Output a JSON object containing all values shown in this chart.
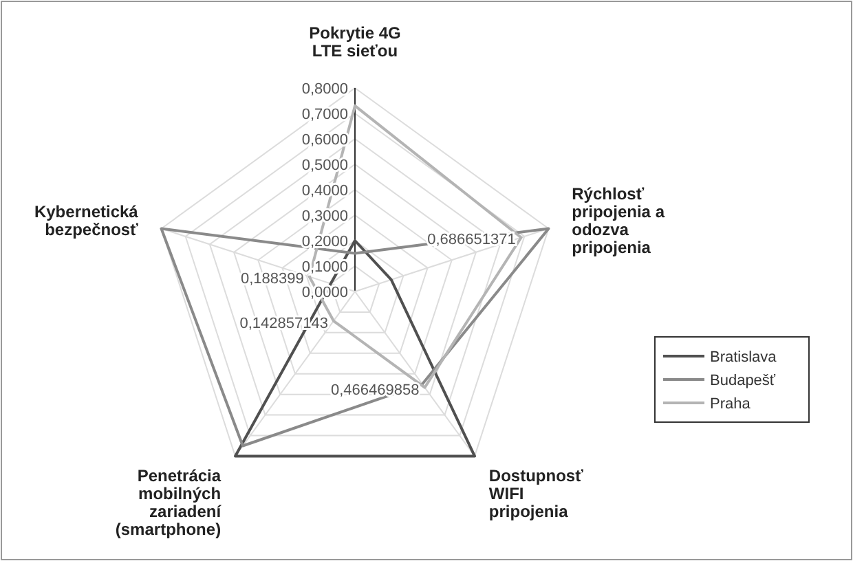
{
  "chart_data": {
    "type": "radar",
    "categories": [
      "Pokrytie 4G LTE sieťou",
      "Rýchlosť pripojenia a odozva pripojenia",
      "Dostupnosť WIFI pripojenia",
      "Penetrácia mobilných zariadení (smartphone)",
      "Kybernetická bezpečnosť"
    ],
    "series": [
      {
        "name": "Bratislava",
        "color": "#505050",
        "values": [
          0.2,
          0.15,
          0.8,
          0.8,
          0.1
        ]
      },
      {
        "name": "Budapešť",
        "color": "#8a8a8a",
        "values": [
          0.15,
          0.8,
          0.45,
          0.75,
          0.8
        ]
      },
      {
        "name": "Praha",
        "color": "#b4b4b4",
        "values": [
          0.73,
          0.686651371,
          0.466469858,
          0.142857143,
          0.188399
        ],
        "value_labels": [
          null,
          "0,686651371",
          "0,466469858",
          "0,142857143",
          "0,188399"
        ]
      }
    ],
    "ylim": [
      0,
      0.8
    ],
    "yticks": [
      {
        "value": 0,
        "label": "0,0000"
      },
      {
        "value": 0.1,
        "label": "0,1000"
      },
      {
        "value": 0.2,
        "label": "0,2000"
      },
      {
        "value": 0.3,
        "label": "0,3000"
      },
      {
        "value": 0.4,
        "label": "0,4000"
      },
      {
        "value": 0.5,
        "label": "0,5000"
      },
      {
        "value": 0.6,
        "label": "0,6000"
      },
      {
        "value": 0.7,
        "label": "0,7000"
      },
      {
        "value": 0.8,
        "label": "0,8000"
      }
    ],
    "grid": true,
    "legend": "right",
    "marker": "none"
  }
}
